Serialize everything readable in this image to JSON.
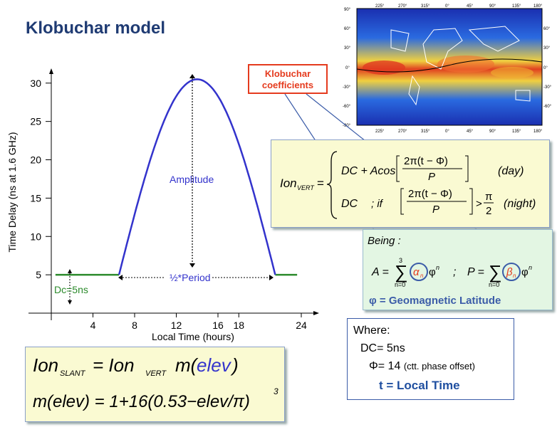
{
  "title": "Klobuchar model",
  "coefficients_label": [
    "Klobuchar",
    "coefficients"
  ],
  "colors": {
    "title": "#1f3b73",
    "curve": "#3333cc",
    "baseline": "#2b8a2b",
    "coef": "#e53b1e",
    "greek": "#3b5ca8",
    "green_text": "#2b8a2b"
  },
  "chart_data": {
    "type": "line",
    "xlabel": "Local Time (hours)",
    "ylabel": "Time Delay (ns at 1.6 GHz)",
    "xticks": [
      "4",
      "8",
      "12",
      "16",
      "18",
      "24"
    ],
    "xtick_values": [
      4,
      8,
      12,
      16,
      18,
      24
    ],
    "yticks": [
      "5",
      "10",
      "15",
      "20",
      "25",
      "30"
    ],
    "ytick_values": [
      5,
      10,
      15,
      20,
      25,
      30
    ],
    "xlim": [
      0,
      24
    ],
    "ylim": [
      0,
      31
    ],
    "night_level": 5,
    "peak_time": 14,
    "peak_value": 30.5,
    "day_start": 6.5,
    "day_end": 21.5,
    "annotations": {
      "amplitude": "Amplitude",
      "period": "½*Period",
      "dc": "Dc=5ns"
    }
  },
  "formula": {
    "ion_vert": "Ion",
    "ion_vert_sub": "VERT",
    "day_expr": "DC + Acos",
    "frac_num": "2π(t − Φ)",
    "frac_den": "P",
    "day_label": "(day)",
    "night_dc": "DC",
    "night_if": "; if",
    "night_gt": "> π/2",
    "night_pi": "π",
    "night_two": "2",
    "night_label": "(night)"
  },
  "being": {
    "label": "Being :",
    "A_expr": "A = ∑",
    "alpha": "α",
    "alpha_sub": "n",
    "beta": "β",
    "beta_sub": "n",
    "phi": "φ",
    "pow": "n",
    "sum_top": "3",
    "sum_bottom": "n=0",
    "P_expr": "; P = ∑",
    "geomag": "φ = Geomagnetic Latitude"
  },
  "where": {
    "header": "Where:",
    "dc": "DC= 5ns",
    "phase": "Φ= 14",
    "phase_note": "(ctt. phase offset)",
    "t": "t = Local Time"
  },
  "slant": {
    "line1_left": "Ion",
    "line1_sub": "SLANT",
    "line1_eq": "= Ion",
    "line1_sub2": "VERT",
    "line1_m": "m(",
    "line1_elev": "elev",
    "line1_close": ")",
    "line2": "m(elev) = 1+16(0.53−elev/π)",
    "line2_pow": "3"
  },
  "map": {
    "top_ticks": [
      "225°",
      "270°",
      "315°",
      "0°",
      "45°",
      "90°",
      "135°",
      "180°"
    ],
    "left_ticks": [
      "90°",
      "60°",
      "30°",
      "0°",
      "-30°",
      "-60°",
      "-90°"
    ]
  }
}
